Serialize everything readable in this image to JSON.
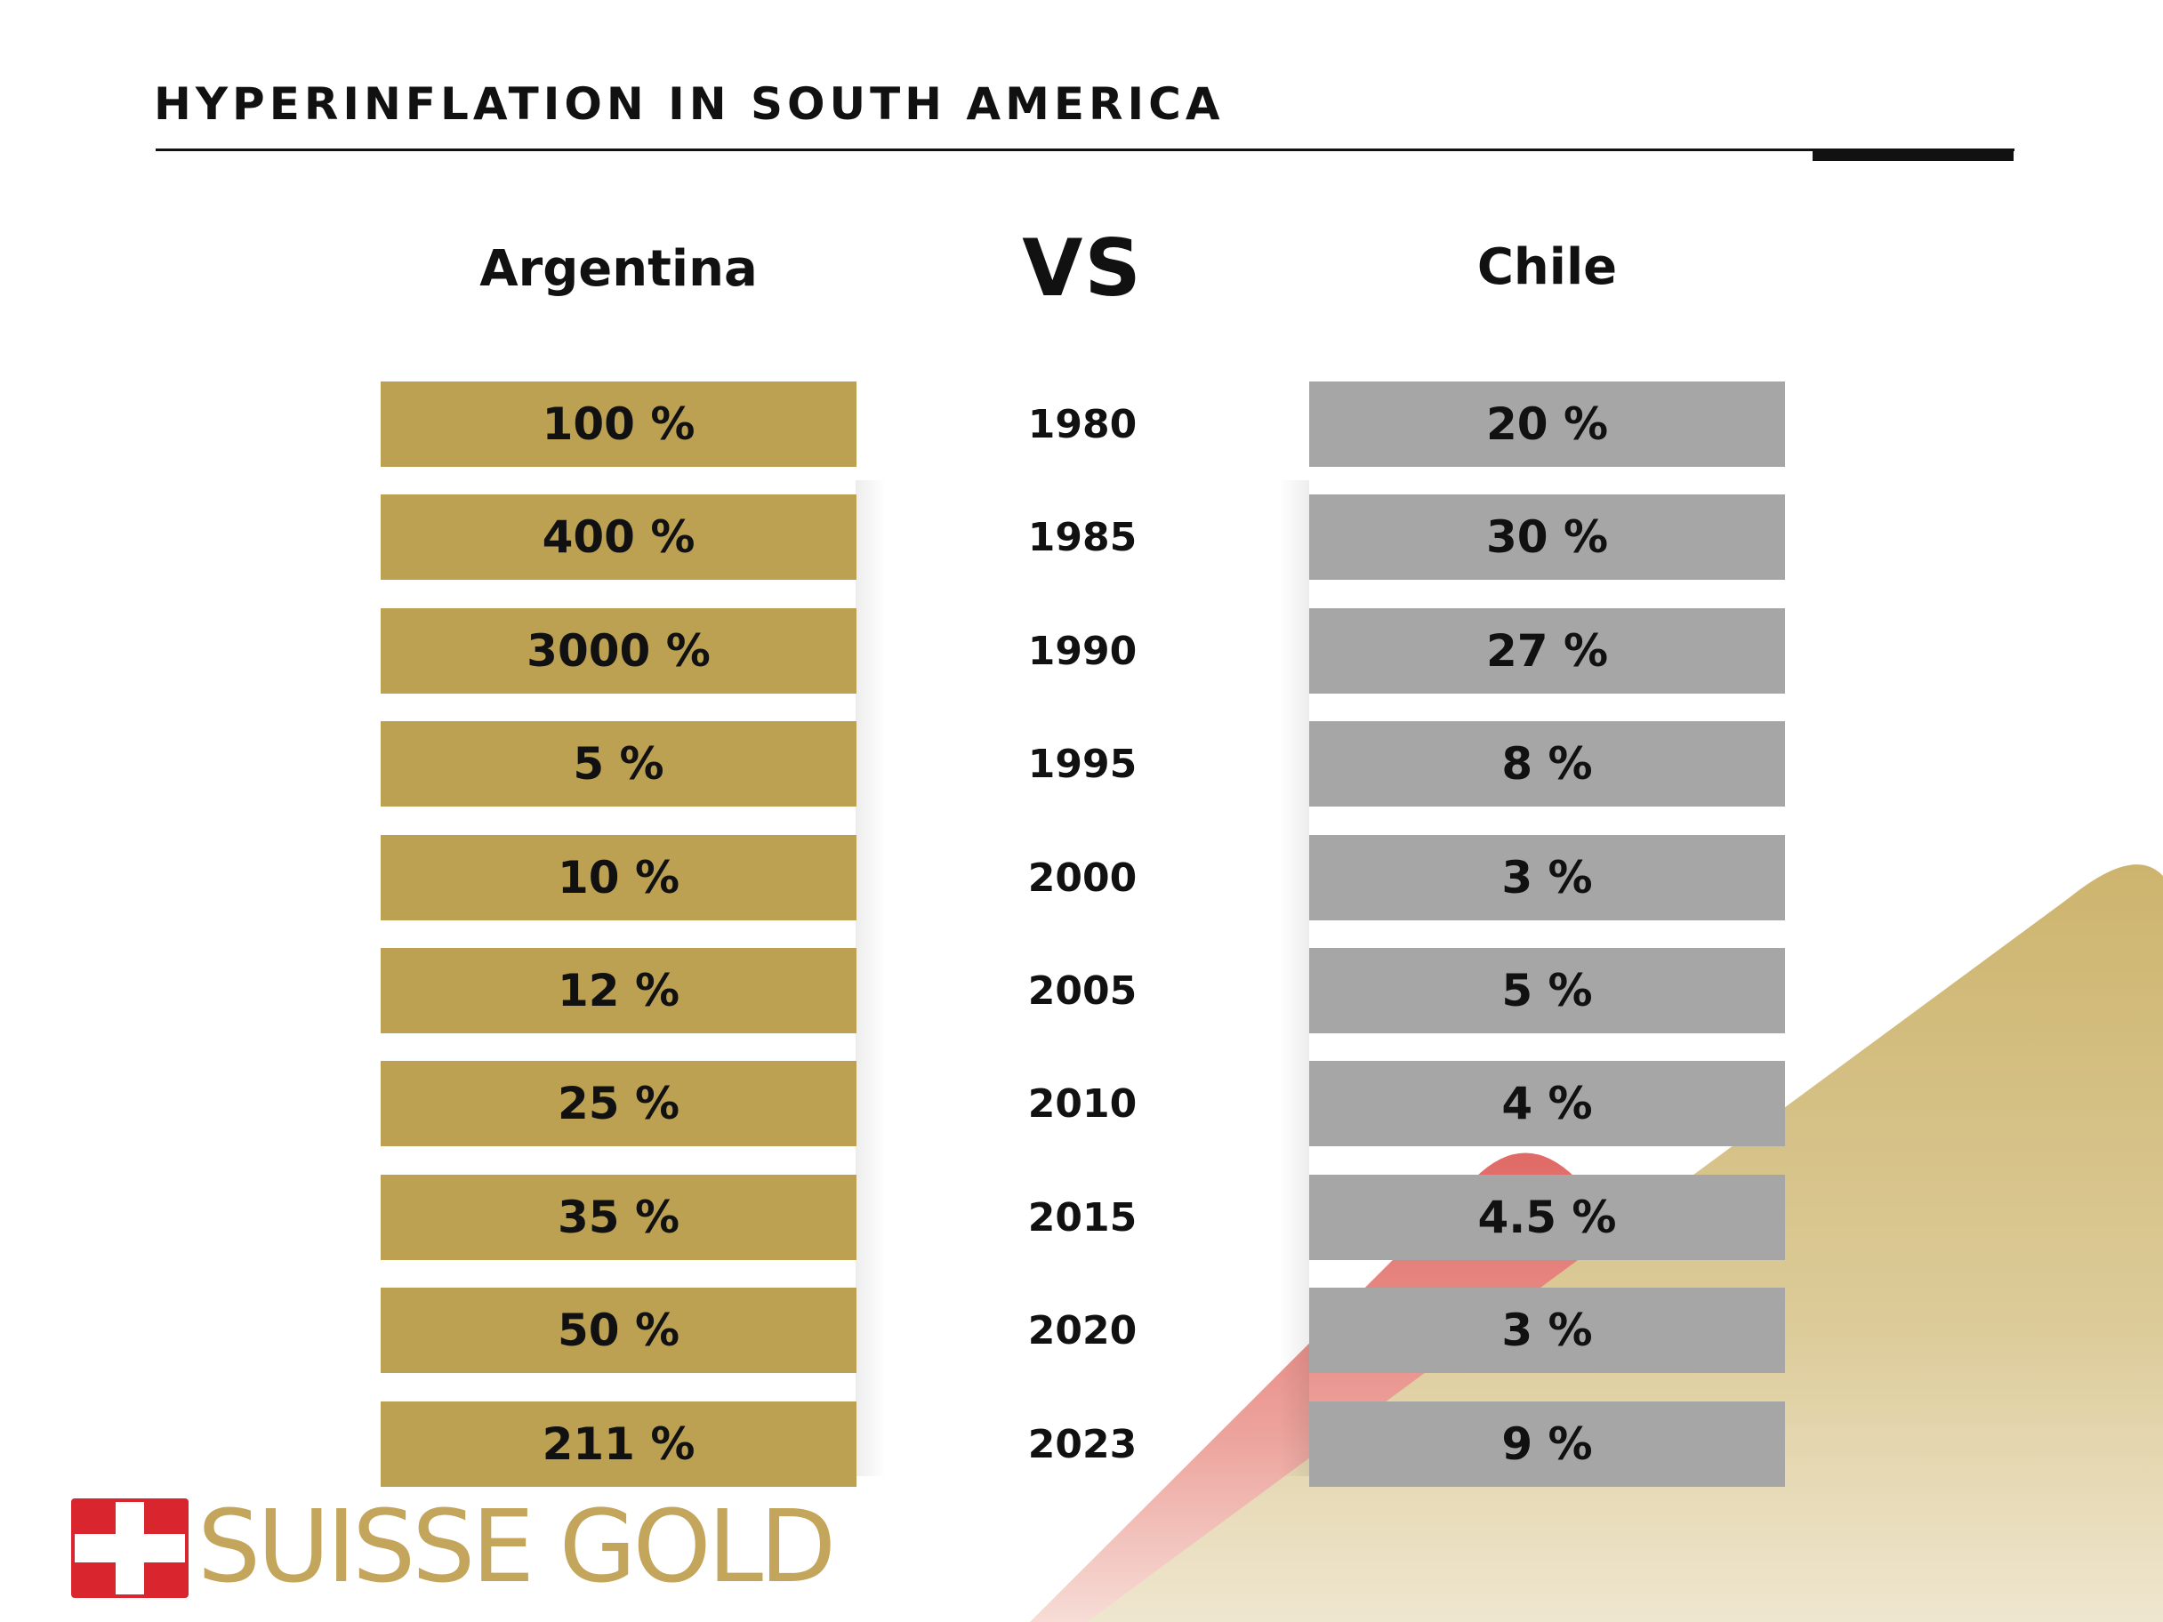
{
  "title": "HYPERINFLATION IN SOUTH AMERICA",
  "colors": {
    "argentina_bar": "#bda153",
    "chile_bar": "#a6a6a6",
    "brand_gold": "#c4a55c",
    "brand_red": "#d9262e",
    "text": "#111111"
  },
  "headers": {
    "left": "Argentina",
    "middle": "VS",
    "right": "Chile"
  },
  "chart_data": {
    "type": "table",
    "title": "HYPERINFLATION IN SOUTH AMERICA",
    "categories": [
      "1980",
      "1985",
      "1990",
      "1995",
      "2000",
      "2005",
      "2010",
      "2015",
      "2020",
      "2023"
    ],
    "series": [
      {
        "name": "Argentina",
        "values": [
          100,
          400,
          3000,
          5,
          10,
          12,
          25,
          35,
          50,
          211
        ],
        "labels": [
          "100 %",
          "400 %",
          "3000 %",
          "5 %",
          "10 %",
          "12 %",
          "25 %",
          "35 %",
          "50 %",
          "211 %"
        ]
      },
      {
        "name": "Chile",
        "values": [
          20,
          30,
          27,
          8,
          3,
          5,
          4,
          4.5,
          3,
          9
        ],
        "labels": [
          "20 %",
          "30 %",
          "27 %",
          "8 %",
          "3 %",
          "5 %",
          "4 %",
          "4.5 %",
          "3 %",
          "9 %"
        ]
      }
    ]
  },
  "logo": {
    "text": "SUISSE GOLD",
    "icon": "swiss-cross-icon"
  }
}
